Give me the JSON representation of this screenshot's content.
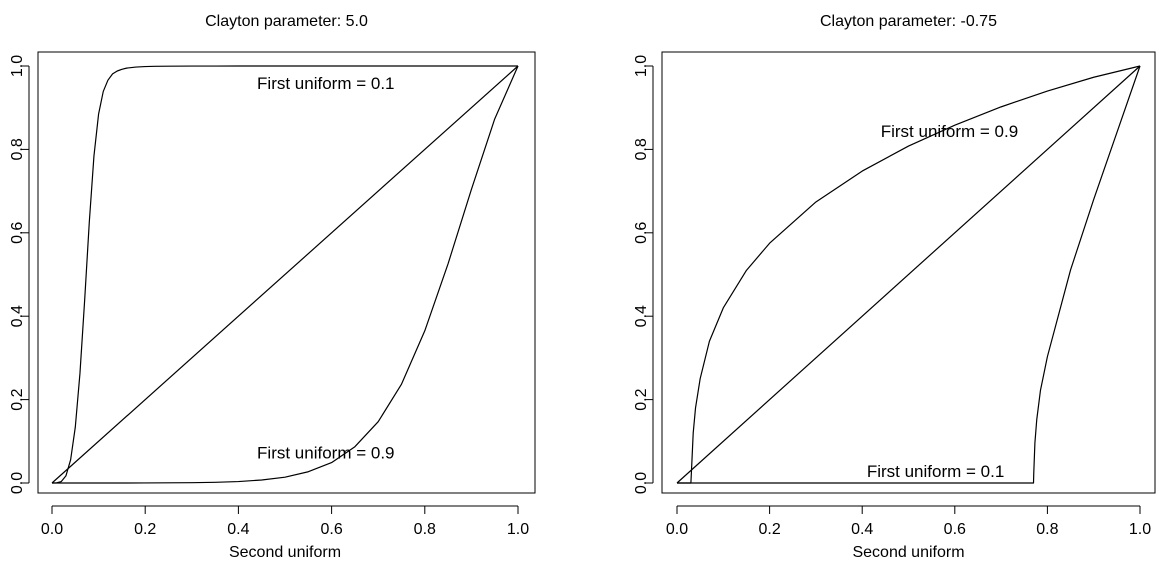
{
  "chart_data": [
    {
      "type": "line",
      "title": "Clayton parameter: 5.0",
      "xlabel": "Second uniform",
      "ylabel": "",
      "xlim": [
        0,
        1
      ],
      "ylim": [
        0,
        1
      ],
      "x_ticks": [
        "0.0",
        "0.2",
        "0.4",
        "0.6",
        "0.8",
        "1.0"
      ],
      "y_ticks": [
        "0.0",
        "0.2",
        "0.4",
        "0.6",
        "0.8",
        "1.0"
      ],
      "grid": false,
      "legend": "none",
      "color": "#000000",
      "series": [
        {
          "x": [
            0.0,
            0.01,
            0.02,
            0.03,
            0.04,
            0.05,
            0.06,
            0.07,
            0.08,
            0.09,
            0.1,
            0.11,
            0.12,
            0.13,
            0.14,
            0.15,
            0.16,
            0.18,
            0.2,
            0.22,
            0.25,
            0.3,
            0.35,
            0.4,
            0.5,
            0.6,
            0.7,
            0.8,
            0.9,
            1.0
          ],
          "y": [
            0.0,
            0.0003,
            0.0035,
            0.0175,
            0.056,
            0.134,
            0.263,
            0.437,
            0.625,
            0.784,
            0.885,
            0.939,
            0.966,
            0.981,
            0.988,
            0.992,
            0.9949,
            0.9975,
            0.9986,
            0.9992,
            0.9996,
            0.9998,
            0.9999,
            1.0,
            1.0,
            1.0,
            1.0,
            1.0,
            1.0,
            1.0
          ]
        },
        {
          "x": [
            0.0,
            1.0
          ],
          "y": [
            0.0,
            1.0
          ]
        },
        {
          "x": [
            0.0,
            0.1,
            0.2,
            0.3,
            0.35,
            0.4,
            0.45,
            0.5,
            0.55,
            0.6,
            0.65,
            0.7,
            0.75,
            0.8,
            0.85,
            0.9,
            0.95,
            1.0
          ],
          "y": [
            0.0,
            0.0,
            0.0001,
            0.0007,
            0.0016,
            0.0035,
            0.0072,
            0.014,
            0.027,
            0.049,
            0.087,
            0.147,
            0.237,
            0.365,
            0.526,
            0.704,
            0.873,
            1.0
          ]
        }
      ],
      "annotations": [
        {
          "text": "First uniform = 0.1",
          "x": 0.44,
          "y": 0.955
        },
        {
          "text": "First uniform = 0.9",
          "x": 0.44,
          "y": 0.07
        }
      ]
    },
    {
      "type": "line",
      "title": "Clayton parameter: -0.75",
      "xlabel": "Second uniform",
      "ylabel": "",
      "xlim": [
        0,
        1
      ],
      "ylim": [
        0,
        1
      ],
      "x_ticks": [
        "0.0",
        "0.2",
        "0.4",
        "0.6",
        "0.8",
        "1.0"
      ],
      "y_ticks": [
        "0.0",
        "0.2",
        "0.4",
        "0.6",
        "0.8",
        "1.0"
      ],
      "grid": false,
      "legend": "none",
      "color": "#000000",
      "series": [
        {
          "x": [
            0.0,
            0.03,
            0.031,
            0.035,
            0.04,
            0.05,
            0.07,
            0.1,
            0.15,
            0.2,
            0.3,
            0.4,
            0.5,
            0.6,
            0.7,
            0.8,
            0.9,
            1.0
          ],
          "y": [
            0.0,
            0.0,
            0.023,
            0.12,
            0.18,
            0.25,
            0.34,
            0.42,
            0.51,
            0.575,
            0.674,
            0.748,
            0.808,
            0.858,
            0.902,
            0.94,
            0.973,
            1.0
          ]
        },
        {
          "x": [
            0.0,
            1.0
          ],
          "y": [
            0.0,
            1.0
          ]
        },
        {
          "x": [
            0.0,
            0.77,
            0.7705,
            0.773,
            0.777,
            0.785,
            0.8,
            0.85,
            0.9,
            0.95,
            1.0
          ],
          "y": [
            0.0,
            0.0,
            0.022,
            0.096,
            0.152,
            0.222,
            0.303,
            0.511,
            0.68,
            0.84,
            1.0
          ]
        }
      ],
      "annotations": [
        {
          "text": "First uniform = 0.9",
          "x": 0.44,
          "y": 0.84
        },
        {
          "text": "First uniform = 0.1",
          "x": 0.41,
          "y": 0.025
        }
      ]
    }
  ]
}
